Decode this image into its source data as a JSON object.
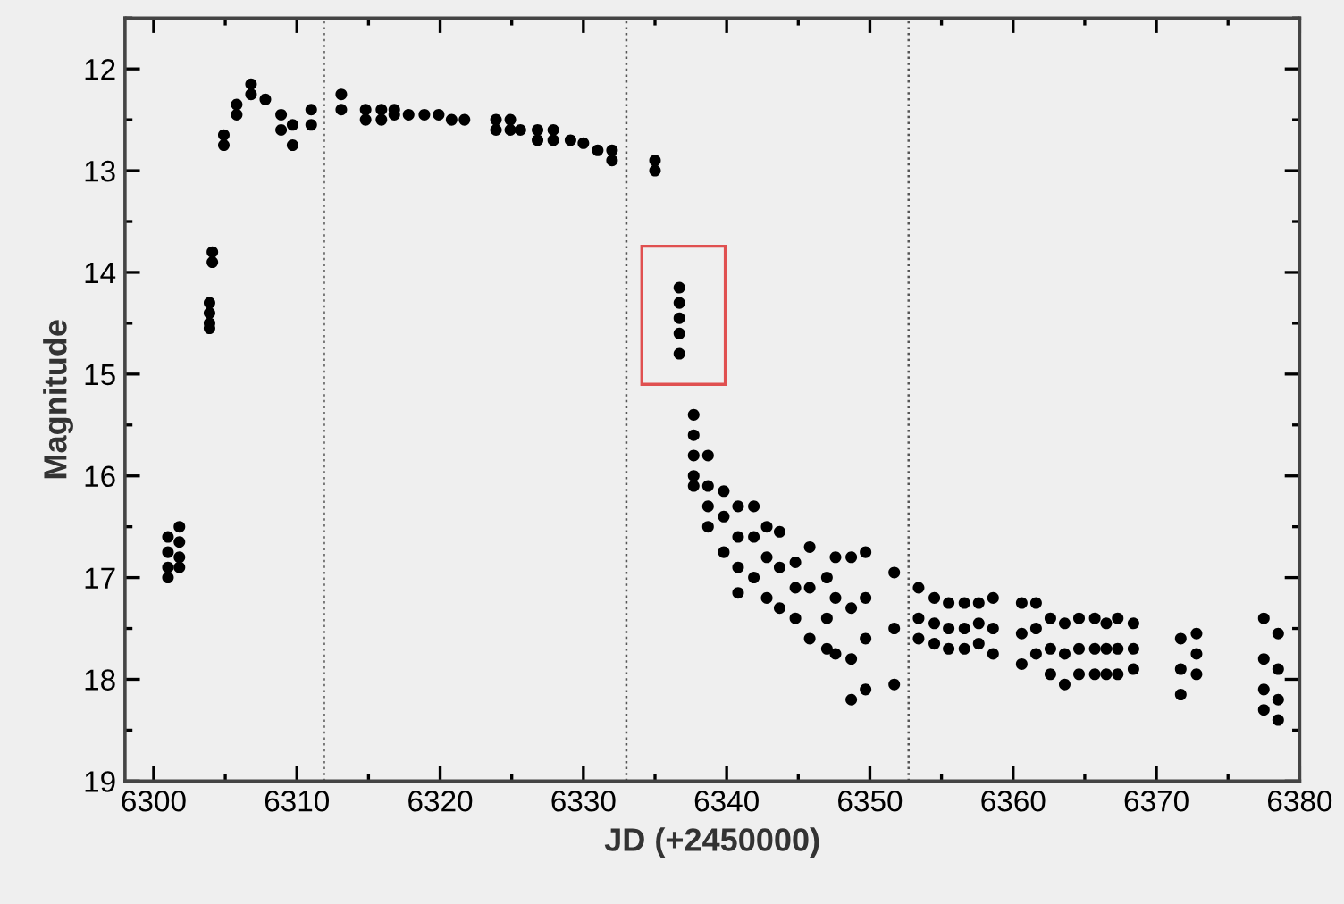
{
  "chart_data": {
    "type": "scatter",
    "xlabel": "JD (+2450000)",
    "ylabel": "Magnitude",
    "xlim": [
      6298,
      6380
    ],
    "xticks": [
      6300,
      6310,
      6320,
      6330,
      6340,
      6350,
      6360,
      6370,
      6380
    ],
    "ylim": [
      19,
      11.5
    ],
    "yticks": [
      12,
      13,
      14,
      15,
      16,
      17,
      18,
      19
    ],
    "grid": false,
    "marker": "circle",
    "ref_lines": [
      {
        "axis": "x",
        "value": 6311.9,
        "color": "#777777",
        "line_style": "dotted"
      },
      {
        "axis": "x",
        "value": 6333.0,
        "color": "#555555",
        "line_style": "dotted"
      },
      {
        "axis": "x",
        "value": 6352.7,
        "color": "#555555",
        "line_style": "dotted"
      }
    ],
    "series": [
      {
        "color": "#000000",
        "x": [
          6301.0,
          6301.0,
          6301.0,
          6301.0,
          6301.8,
          6301.8,
          6301.8,
          6301.8,
          6303.9,
          6303.9,
          6303.9,
          6303.9,
          6304.1,
          6304.1,
          6304.9,
          6304.9,
          6305.8,
          6305.8,
          6306.8,
          6306.8,
          6307.8,
          6308.9,
          6308.9,
          6309.7,
          6309.7,
          6311.0,
          6311.0,
          6313.1,
          6313.1,
          6314.8,
          6314.8,
          6315.9,
          6315.9,
          6316.8,
          6316.8,
          6317.8,
          6318.9,
          6319.9,
          6320.8,
          6321.7,
          6323.9,
          6323.9,
          6324.9,
          6324.9,
          6325.6,
          6326.8,
          6326.8,
          6327.9,
          6327.9,
          6329.1,
          6330.0,
          6331.0,
          6332.0,
          6332.0,
          6335.0,
          6335.0,
          6336.7,
          6336.7,
          6336.7,
          6336.7,
          6336.7,
          6337.7,
          6337.7,
          6337.7,
          6337.7,
          6337.7,
          6338.7,
          6338.7,
          6338.7,
          6338.7,
          6339.8,
          6339.8,
          6339.8,
          6340.8,
          6340.8,
          6340.8,
          6340.8,
          6341.9,
          6341.9,
          6341.9,
          6342.8,
          6342.8,
          6342.8,
          6343.7,
          6343.7,
          6343.7,
          6344.8,
          6344.8,
          6344.8,
          6345.8,
          6345.8,
          6345.8,
          6347.0,
          6347.0,
          6347.0,
          6347.6,
          6347.6,
          6347.6,
          6348.7,
          6348.7,
          6348.7,
          6348.7,
          6349.7,
          6349.7,
          6349.7,
          6349.7,
          6351.7,
          6351.7,
          6351.7,
          6353.4,
          6353.4,
          6353.4,
          6354.5,
          6354.5,
          6354.5,
          6355.5,
          6355.5,
          6355.5,
          6356.6,
          6356.6,
          6356.6,
          6357.6,
          6357.6,
          6357.6,
          6358.6,
          6358.6,
          6358.6,
          6360.6,
          6360.6,
          6360.6,
          6361.6,
          6361.6,
          6361.6,
          6362.6,
          6362.6,
          6362.6,
          6363.6,
          6363.6,
          6363.6,
          6364.6,
          6364.6,
          6364.6,
          6365.7,
          6365.7,
          6365.7,
          6366.5,
          6366.5,
          6366.5,
          6367.3,
          6367.3,
          6367.3,
          6368.4,
          6368.4,
          6368.4,
          6371.7,
          6371.7,
          6371.7,
          6372.8,
          6372.8,
          6372.8,
          6377.5,
          6377.5,
          6377.5,
          6377.5,
          6378.5,
          6378.5,
          6378.5,
          6378.5
        ],
        "values": [
          16.6,
          16.75,
          16.9,
          17.0,
          16.5,
          16.65,
          16.8,
          16.9,
          14.3,
          14.4,
          14.5,
          14.55,
          13.8,
          13.9,
          12.65,
          12.75,
          12.35,
          12.45,
          12.15,
          12.25,
          12.3,
          12.45,
          12.6,
          12.55,
          12.75,
          12.4,
          12.55,
          12.25,
          12.4,
          12.4,
          12.5,
          12.4,
          12.5,
          12.4,
          12.45,
          12.45,
          12.45,
          12.45,
          12.5,
          12.5,
          12.5,
          12.6,
          12.5,
          12.6,
          12.6,
          12.6,
          12.7,
          12.6,
          12.7,
          12.7,
          12.73,
          12.8,
          12.8,
          12.9,
          12.9,
          13.0,
          14.15,
          14.3,
          14.45,
          14.6,
          14.8,
          15.4,
          15.6,
          15.8,
          16.0,
          16.1,
          15.8,
          16.1,
          16.3,
          16.5,
          16.15,
          16.4,
          16.75,
          16.3,
          16.6,
          16.9,
          17.15,
          16.3,
          16.6,
          17.0,
          16.5,
          16.8,
          17.2,
          16.55,
          16.9,
          17.3,
          16.85,
          17.1,
          17.4,
          16.7,
          17.1,
          17.6,
          17.0,
          17.4,
          17.7,
          16.8,
          17.2,
          17.75,
          16.8,
          17.3,
          17.8,
          18.2,
          16.75,
          17.2,
          17.6,
          18.1,
          16.95,
          17.5,
          18.05,
          17.1,
          17.4,
          17.6,
          17.2,
          17.45,
          17.65,
          17.25,
          17.5,
          17.7,
          17.25,
          17.5,
          17.7,
          17.25,
          17.45,
          17.65,
          17.2,
          17.5,
          17.75,
          17.25,
          17.55,
          17.85,
          17.25,
          17.5,
          17.75,
          17.4,
          17.7,
          17.95,
          17.45,
          17.75,
          18.05,
          17.4,
          17.7,
          17.95,
          17.4,
          17.7,
          17.95,
          17.45,
          17.7,
          17.95,
          17.4,
          17.7,
          17.95,
          17.45,
          17.7,
          17.9,
          17.6,
          17.9,
          18.15,
          17.55,
          17.75,
          17.95,
          17.4,
          17.8,
          18.1,
          18.3,
          17.55,
          17.9,
          18.2,
          18.4
        ]
      }
    ]
  }
}
